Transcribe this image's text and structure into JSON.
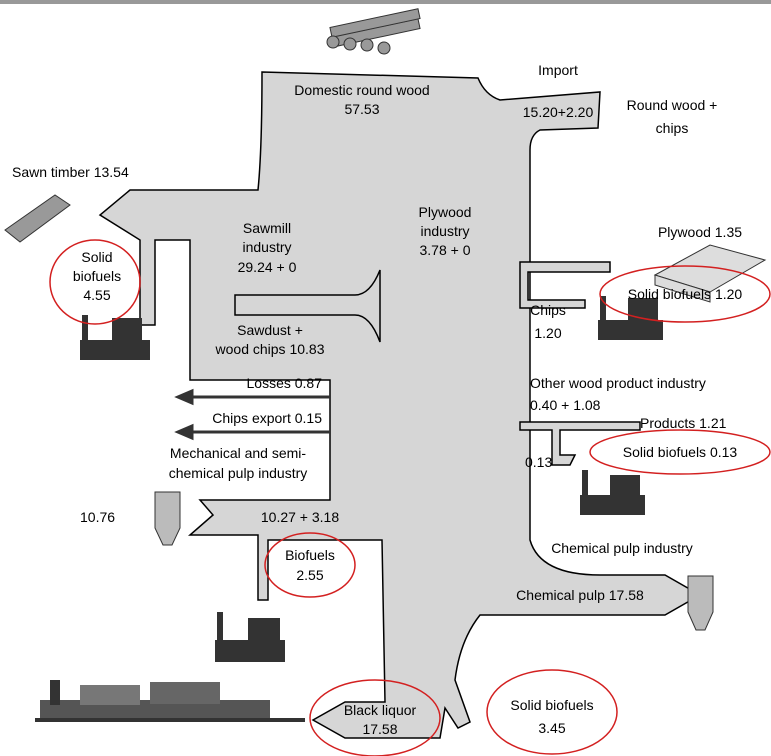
{
  "flows": {
    "domestic_round_wood": [
      "Domestic round wood",
      "57.53"
    ],
    "import": [
      "Import",
      "15.20+2.20"
    ],
    "round_wood_chips": [
      "Round wood +",
      "chips"
    ],
    "sawn_timber": [
      "Sawn timber 13.54"
    ],
    "sawmill": [
      "Sawmill",
      "industry",
      "29.24 + 0"
    ],
    "plywood_industry": [
      "Plywood",
      "industry",
      "3.78 + 0"
    ],
    "plywood": [
      "Plywood 1.35"
    ],
    "solid_biofuels_sawmill": [
      "Solid",
      "biofuels",
      "4.55"
    ],
    "solid_biofuels_plywood": [
      "Solid biofuels 1.20"
    ],
    "sawdust": [
      "Sawdust +",
      "wood chips 10.83"
    ],
    "chips": [
      "Chips",
      "1.20"
    ],
    "losses": [
      "Losses 0.87"
    ],
    "chips_export": [
      "Chips export 0.15"
    ],
    "other_wood": [
      "Other  wood product industry",
      "0.40 + 1.08"
    ],
    "products": [
      "Products 1.21"
    ],
    "solid_biofuels_other": [
      "Solid biofuels 0.13"
    ],
    "mech_pulp": [
      "Mechanical and semi-",
      "chemical pulp industry"
    ],
    "other_small": [
      "0.13"
    ],
    "mech_pulp_out": [
      "10.76"
    ],
    "mech_pulp_in": [
      "10.27 + 3.18"
    ],
    "chem_pulp_industry": [
      "Chemical pulp industry"
    ],
    "biofuels": [
      "Biofuels",
      "2.55"
    ],
    "chem_pulp": [
      "Chemical pulp 17.58"
    ],
    "black_liquor": [
      "Black liquor",
      "17.58"
    ],
    "solid_biofuels_chem": [
      "Solid biofuels",
      "3.45"
    ]
  }
}
